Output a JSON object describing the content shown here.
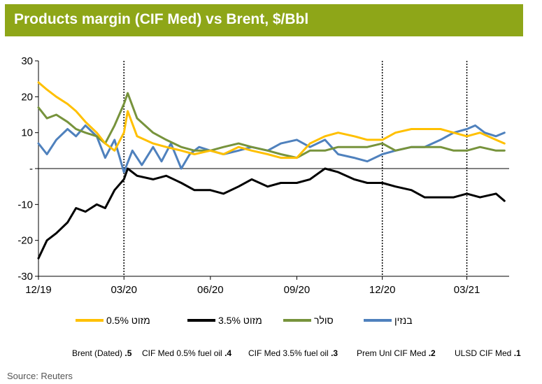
{
  "chart_data": {
    "type": "line",
    "title": "Products margin (CIF Med) vs Brent, $/Bbl",
    "xlabel": "",
    "ylabel": "",
    "ylim": [
      -30,
      30
    ],
    "y_ticks": [
      {
        "value": 30,
        "label": "30"
      },
      {
        "value": 20,
        "label": "20"
      },
      {
        "value": 10,
        "label": "10"
      },
      {
        "value": 0,
        "label": "-"
      },
      {
        "value": -10,
        "label": "-10"
      },
      {
        "value": -20,
        "label": "-20"
      },
      {
        "value": -30,
        "label": "-30"
      }
    ],
    "x_ticks": [
      {
        "date": "2019-12-01",
        "label": "12/19"
      },
      {
        "date": "2020-03-01",
        "label": "03/20"
      },
      {
        "date": "2020-06-01",
        "label": "06/20"
      },
      {
        "date": "2020-09-01",
        "label": "09/20"
      },
      {
        "date": "2020-12-01",
        "label": "12/20"
      },
      {
        "date": "2021-03-01",
        "label": "03/21"
      }
    ],
    "xlim": [
      "2019-12-01",
      "2021-04-15"
    ],
    "vertical_markers": [
      "2020-03-01",
      "2020-12-01",
      "2021-03-01"
    ],
    "grid": false,
    "legend_position": "bottom",
    "series": [
      {
        "name": "בנזין",
        "color": "#4f81bd",
        "points": [
          [
            "2019-12-01",
            7
          ],
          [
            "2019-12-10",
            4
          ],
          [
            "2019-12-20",
            8
          ],
          [
            "2020-01-01",
            11
          ],
          [
            "2020-01-10",
            9
          ],
          [
            "2020-01-20",
            12
          ],
          [
            "2020-02-01",
            9
          ],
          [
            "2020-02-10",
            3
          ],
          [
            "2020-02-20",
            8
          ],
          [
            "2020-03-01",
            -1
          ],
          [
            "2020-03-10",
            5
          ],
          [
            "2020-03-20",
            1
          ],
          [
            "2020-04-01",
            6
          ],
          [
            "2020-04-10",
            2
          ],
          [
            "2020-04-20",
            7
          ],
          [
            "2020-05-01",
            0
          ],
          [
            "2020-05-10",
            4
          ],
          [
            "2020-05-20",
            6
          ],
          [
            "2020-06-01",
            5
          ],
          [
            "2020-06-15",
            4
          ],
          [
            "2020-07-01",
            5
          ],
          [
            "2020-07-15",
            6
          ],
          [
            "2020-08-01",
            5
          ],
          [
            "2020-08-15",
            7
          ],
          [
            "2020-09-01",
            8
          ],
          [
            "2020-09-15",
            6
          ],
          [
            "2020-10-01",
            8
          ],
          [
            "2020-10-15",
            4
          ],
          [
            "2020-11-01",
            3
          ],
          [
            "2020-11-15",
            2
          ],
          [
            "2020-12-01",
            4
          ],
          [
            "2020-12-15",
            5
          ],
          [
            "2021-01-01",
            6
          ],
          [
            "2021-01-15",
            6
          ],
          [
            "2021-02-01",
            8
          ],
          [
            "2021-02-15",
            10
          ],
          [
            "2021-03-01",
            11
          ],
          [
            "2021-03-10",
            12
          ],
          [
            "2021-03-20",
            10
          ],
          [
            "2021-04-01",
            9
          ],
          [
            "2021-04-10",
            10
          ]
        ]
      },
      {
        "name": "סולר",
        "color": "#77933c",
        "points": [
          [
            "2019-12-01",
            17
          ],
          [
            "2019-12-10",
            14
          ],
          [
            "2019-12-20",
            15
          ],
          [
            "2020-01-01",
            13
          ],
          [
            "2020-01-10",
            11
          ],
          [
            "2020-01-20",
            10
          ],
          [
            "2020-02-01",
            9
          ],
          [
            "2020-02-10",
            7
          ],
          [
            "2020-02-20",
            12
          ],
          [
            "2020-03-01",
            18
          ],
          [
            "2020-03-05",
            21
          ],
          [
            "2020-03-15",
            14
          ],
          [
            "2020-04-01",
            10
          ],
          [
            "2020-04-15",
            8
          ],
          [
            "2020-05-01",
            6
          ],
          [
            "2020-05-15",
            5
          ],
          [
            "2020-06-01",
            5
          ],
          [
            "2020-06-15",
            6
          ],
          [
            "2020-07-01",
            7
          ],
          [
            "2020-07-15",
            6
          ],
          [
            "2020-08-01",
            5
          ],
          [
            "2020-08-15",
            4
          ],
          [
            "2020-09-01",
            3
          ],
          [
            "2020-09-15",
            5
          ],
          [
            "2020-10-01",
            5
          ],
          [
            "2020-10-15",
            6
          ],
          [
            "2020-11-01",
            6
          ],
          [
            "2020-11-15",
            6
          ],
          [
            "2020-12-01",
            7
          ],
          [
            "2020-12-15",
            5
          ],
          [
            "2021-01-01",
            6
          ],
          [
            "2021-01-15",
            6
          ],
          [
            "2021-02-01",
            6
          ],
          [
            "2021-02-15",
            5
          ],
          [
            "2021-03-01",
            5
          ],
          [
            "2021-03-15",
            6
          ],
          [
            "2021-04-01",
            5
          ],
          [
            "2021-04-10",
            5
          ]
        ]
      },
      {
        "name": "מזוט 3.5%",
        "color": "#000000",
        "points": [
          [
            "2019-12-01",
            -25
          ],
          [
            "2019-12-10",
            -20
          ],
          [
            "2019-12-20",
            -18
          ],
          [
            "2020-01-01",
            -15
          ],
          [
            "2020-01-10",
            -11
          ],
          [
            "2020-01-20",
            -12
          ],
          [
            "2020-02-01",
            -10
          ],
          [
            "2020-02-10",
            -11
          ],
          [
            "2020-02-20",
            -6
          ],
          [
            "2020-03-01",
            -3
          ],
          [
            "2020-03-05",
            0
          ],
          [
            "2020-03-15",
            -2
          ],
          [
            "2020-04-01",
            -3
          ],
          [
            "2020-04-15",
            -2
          ],
          [
            "2020-05-01",
            -4
          ],
          [
            "2020-05-15",
            -6
          ],
          [
            "2020-06-01",
            -6
          ],
          [
            "2020-06-15",
            -7
          ],
          [
            "2020-07-01",
            -5
          ],
          [
            "2020-07-15",
            -3
          ],
          [
            "2020-08-01",
            -5
          ],
          [
            "2020-08-15",
            -4
          ],
          [
            "2020-09-01",
            -4
          ],
          [
            "2020-09-15",
            -3
          ],
          [
            "2020-10-01",
            0
          ],
          [
            "2020-10-15",
            -1
          ],
          [
            "2020-11-01",
            -3
          ],
          [
            "2020-11-15",
            -4
          ],
          [
            "2020-12-01",
            -4
          ],
          [
            "2020-12-15",
            -5
          ],
          [
            "2021-01-01",
            -6
          ],
          [
            "2021-01-15",
            -8
          ],
          [
            "2021-02-01",
            -8
          ],
          [
            "2021-02-15",
            -8
          ],
          [
            "2021-03-01",
            -7
          ],
          [
            "2021-03-15",
            -8
          ],
          [
            "2021-04-01",
            -7
          ],
          [
            "2021-04-10",
            -9
          ]
        ]
      },
      {
        "name": "מזוט 0.5%",
        "color": "#ffc000",
        "points": [
          [
            "2019-12-01",
            24
          ],
          [
            "2019-12-10",
            22
          ],
          [
            "2019-12-20",
            20
          ],
          [
            "2020-01-01",
            18
          ],
          [
            "2020-01-10",
            16
          ],
          [
            "2020-01-20",
            13
          ],
          [
            "2020-02-01",
            10
          ],
          [
            "2020-02-10",
            7
          ],
          [
            "2020-02-20",
            5
          ],
          [
            "2020-03-01",
            10
          ],
          [
            "2020-03-05",
            16
          ],
          [
            "2020-03-15",
            9
          ],
          [
            "2020-04-01",
            7
          ],
          [
            "2020-04-15",
            6
          ],
          [
            "2020-05-01",
            5
          ],
          [
            "2020-05-15",
            4
          ],
          [
            "2020-06-01",
            5
          ],
          [
            "2020-06-15",
            4
          ],
          [
            "2020-07-01",
            6
          ],
          [
            "2020-07-15",
            5
          ],
          [
            "2020-08-01",
            4
          ],
          [
            "2020-08-15",
            3
          ],
          [
            "2020-09-01",
            3
          ],
          [
            "2020-09-15",
            7
          ],
          [
            "2020-10-01",
            9
          ],
          [
            "2020-10-15",
            10
          ],
          [
            "2020-11-01",
            9
          ],
          [
            "2020-11-15",
            8
          ],
          [
            "2020-12-01",
            8
          ],
          [
            "2020-12-15",
            10
          ],
          [
            "2021-01-01",
            11
          ],
          [
            "2021-01-15",
            11
          ],
          [
            "2021-02-01",
            11
          ],
          [
            "2021-02-15",
            10
          ],
          [
            "2021-03-01",
            9
          ],
          [
            "2021-03-15",
            10
          ],
          [
            "2021-04-01",
            8
          ],
          [
            "2021-04-10",
            7
          ]
        ]
      }
    ]
  },
  "notes": [
    {
      "num": "1",
      "text": "ULSD CIF Med"
    },
    {
      "num": "2",
      "text": "Prem Unl CIF Med"
    },
    {
      "num": "3",
      "text": "CIF Med 3.5% fuel oil"
    },
    {
      "num": "4",
      "text": "CIF Med 0.5% fuel oil"
    },
    {
      "num": "5",
      "text": "Brent (Dated)"
    }
  ],
  "source": "Source: Reuters"
}
